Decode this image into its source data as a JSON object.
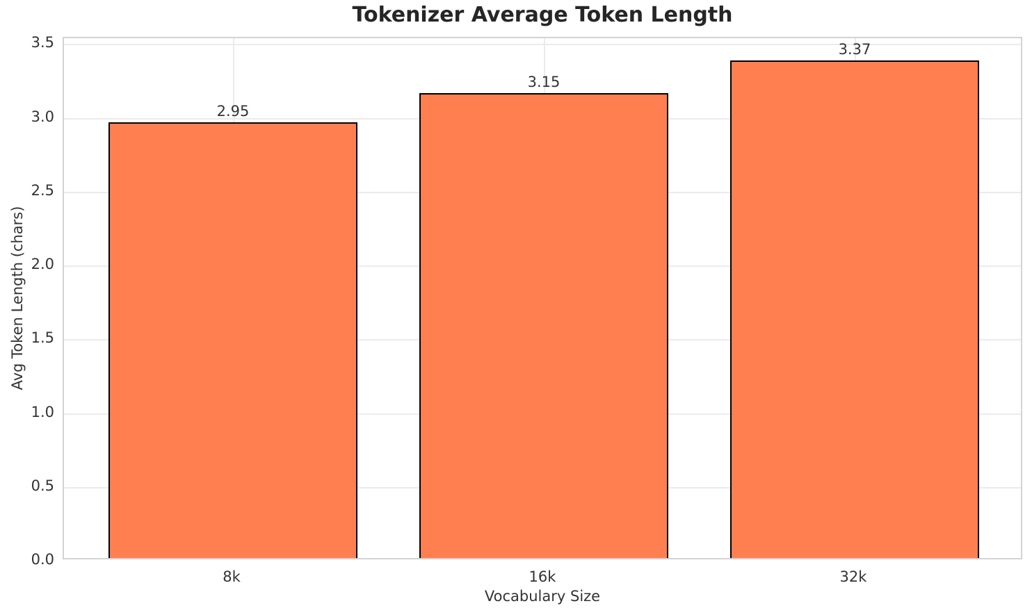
{
  "chart_data": {
    "type": "bar",
    "title": "Tokenizer Average Token Length",
    "xlabel": "Vocabulary Size",
    "ylabel": "Avg Token Length (chars)",
    "categories": [
      "8k",
      "16k",
      "32k"
    ],
    "values": [
      2.95,
      3.15,
      3.37
    ],
    "value_labels": [
      "2.95",
      "3.15",
      "3.37"
    ],
    "ylim": [
      0,
      3.54
    ],
    "yticks": [
      0.0,
      0.5,
      1.0,
      1.5,
      2.0,
      2.5,
      3.0,
      3.5
    ],
    "ytick_labels": [
      "0.0",
      "0.5",
      "1.0",
      "1.5",
      "2.0",
      "2.5",
      "3.0",
      "3.5"
    ],
    "grid": true,
    "legend": false,
    "bar_color": "#FF7F50",
    "bar_edge_color": "#000000",
    "background_color": "#ffffff",
    "grid_color": "#ebebeb",
    "spine_color": "#d3d3d3",
    "text_color": "#333333",
    "title_color": "#262626"
  }
}
